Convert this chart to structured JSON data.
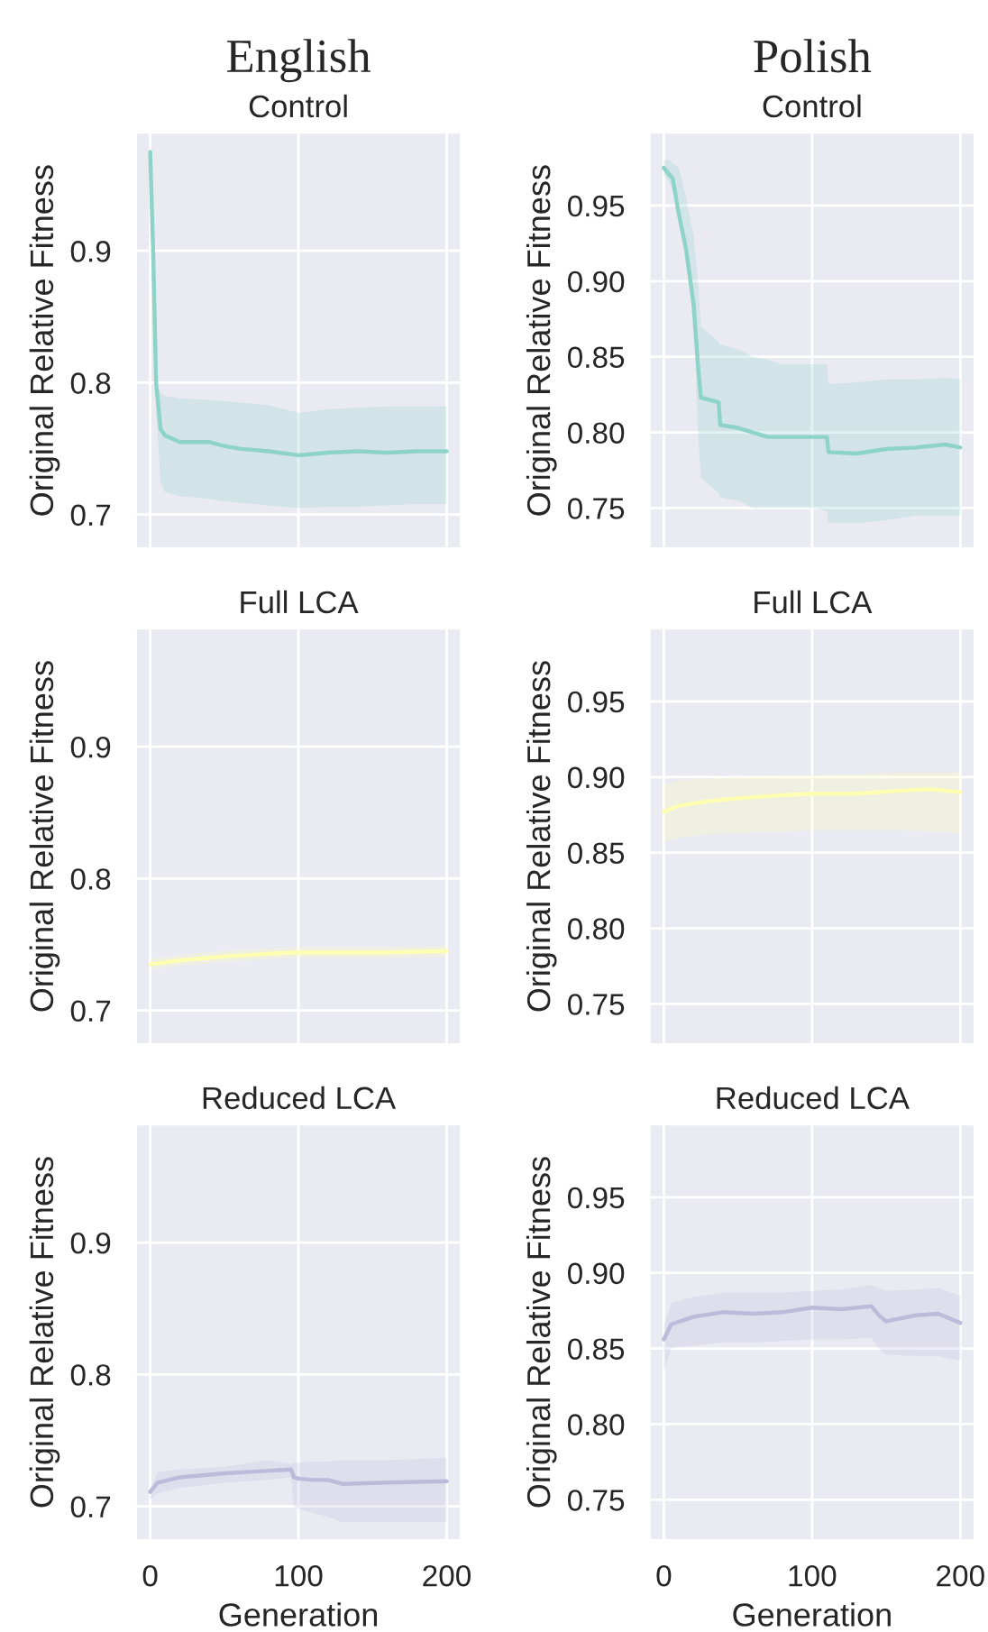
{
  "chart_data": [
    {
      "type": "line",
      "subtitle": "English",
      "title": "Control",
      "ylabel": "Original Relative Fitness",
      "xlim": [
        -10,
        210
      ],
      "xticks": [
        0,
        100,
        200
      ],
      "ylim": [
        0.674,
        0.99
      ],
      "yticks": [
        0.7,
        0.8,
        0.9
      ],
      "grid": true,
      "tick_labels": "y",
      "series": [
        {
          "color": "#8dd3c7",
          "x": [
            0,
            2,
            4,
            7,
            10,
            20,
            40,
            50,
            60,
            80,
            100,
            120,
            140,
            160,
            180,
            200
          ],
          "values": [
            0.975,
            0.9,
            0.8,
            0.765,
            0.76,
            0.755,
            0.755,
            0.752,
            0.75,
            0.748,
            0.745,
            0.747,
            0.748,
            0.747,
            0.748,
            0.748
          ],
          "upper": [
            0.975,
            0.9,
            0.8,
            0.792,
            0.79,
            0.788,
            0.787,
            0.786,
            0.785,
            0.783,
            0.777,
            0.78,
            0.781,
            0.782,
            0.782,
            0.782
          ],
          "lower": [
            0.975,
            0.9,
            0.78,
            0.725,
            0.717,
            0.714,
            0.712,
            0.71,
            0.709,
            0.707,
            0.705,
            0.706,
            0.706,
            0.707,
            0.708,
            0.708
          ]
        }
      ]
    },
    {
      "type": "line",
      "subtitle": "Polish",
      "title": "Control",
      "ylabel": "Original Relative Fitness",
      "xlim": [
        -10,
        210
      ],
      "xticks": [
        0,
        100,
        200
      ],
      "ylim": [
        0.723,
        0.9985
      ],
      "yticks": [
        {
          "value": 0.75,
          "label": "0.75"
        },
        {
          "value": 0.8,
          "label": "0.80"
        },
        {
          "value": 0.85,
          "label": "0.85"
        },
        {
          "value": 0.9,
          "label": "0.90"
        },
        {
          "value": 0.95,
          "label": "0.95"
        }
      ],
      "grid": true,
      "tick_labels": "y",
      "series": [
        {
          "color": "#8dd3c7",
          "x": [
            0,
            4,
            6,
            10,
            15,
            20,
            23,
            25,
            37,
            38,
            50,
            60,
            70,
            80,
            100,
            110,
            111,
            130,
            150,
            170,
            190,
            200
          ],
          "values": [
            0.975,
            0.97,
            0.968,
            0.945,
            0.921,
            0.885,
            0.845,
            0.823,
            0.82,
            0.805,
            0.803,
            0.8,
            0.797,
            0.797,
            0.797,
            0.797,
            0.787,
            0.786,
            0.789,
            0.79,
            0.792,
            0.79
          ],
          "upper": [
            0.98,
            0.98,
            0.978,
            0.975,
            0.955,
            0.93,
            0.9,
            0.87,
            0.86,
            0.858,
            0.855,
            0.85,
            0.848,
            0.845,
            0.845,
            0.845,
            0.832,
            0.833,
            0.835,
            0.835,
            0.836,
            0.835
          ],
          "lower": [
            0.97,
            0.965,
            0.96,
            0.955,
            0.92,
            0.88,
            0.8,
            0.77,
            0.76,
            0.757,
            0.755,
            0.75,
            0.75,
            0.75,
            0.75,
            0.748,
            0.74,
            0.74,
            0.742,
            0.745,
            0.745,
            0.745
          ]
        }
      ]
    },
    {
      "type": "line",
      "title": "Full LCA",
      "ylabel": "Original Relative Fitness",
      "xlim": [
        -10,
        210
      ],
      "xticks": [
        0,
        100,
        200
      ],
      "ylim": [
        0.674,
        0.99
      ],
      "yticks": [
        0.7,
        0.8,
        0.9
      ],
      "grid": true,
      "tick_labels": "y",
      "series": [
        {
          "color": "#ffffb3",
          "x": [
            0,
            20,
            50,
            80,
            100,
            130,
            160,
            200
          ],
          "values": [
            0.735,
            0.738,
            0.741,
            0.743,
            0.744,
            0.744,
            0.744,
            0.745
          ],
          "upper": [
            0.739,
            0.742,
            0.745,
            0.747,
            0.748,
            0.748,
            0.748,
            0.749
          ],
          "lower": [
            0.731,
            0.734,
            0.737,
            0.739,
            0.74,
            0.74,
            0.74,
            0.741
          ]
        }
      ]
    },
    {
      "type": "line",
      "title": "Full LCA",
      "ylabel": "Original Relative Fitness",
      "xlim": [
        -10,
        210
      ],
      "xticks": [
        0,
        100,
        200
      ],
      "ylim": [
        0.723,
        0.9985
      ],
      "yticks": [
        {
          "value": 0.75,
          "label": "0.75"
        },
        {
          "value": 0.8,
          "label": "0.80"
        },
        {
          "value": 0.85,
          "label": "0.85"
        },
        {
          "value": 0.9,
          "label": "0.90"
        },
        {
          "value": 0.95,
          "label": "0.95"
        }
      ],
      "grid": true,
      "tick_labels": "y",
      "series": [
        {
          "color": "#ffffb3",
          "x": [
            0,
            10,
            30,
            50,
            80,
            100,
            130,
            160,
            180,
            200
          ],
          "values": [
            0.877,
            0.881,
            0.884,
            0.886,
            0.888,
            0.889,
            0.889,
            0.891,
            0.892,
            0.89
          ],
          "upper": [
            0.895,
            0.898,
            0.899,
            0.9,
            0.901,
            0.901,
            0.902,
            0.903,
            0.903,
            0.903
          ],
          "lower": [
            0.857,
            0.86,
            0.862,
            0.863,
            0.864,
            0.865,
            0.865,
            0.865,
            0.864,
            0.863
          ]
        }
      ]
    },
    {
      "type": "line",
      "title": "Reduced LCA",
      "ylabel": "Original Relative Fitness",
      "xlabel": "Generation",
      "xlim": [
        -10,
        210
      ],
      "xticks": [
        0,
        100,
        200
      ],
      "ylim": [
        0.674,
        0.99
      ],
      "yticks": [
        0.7,
        0.8,
        0.9
      ],
      "grid": true,
      "series": [
        {
          "color": "#bebada",
          "x": [
            0,
            5,
            20,
            50,
            80,
            95,
            97,
            100,
            110,
            120,
            130,
            160,
            200
          ],
          "values": [
            0.711,
            0.718,
            0.722,
            0.725,
            0.727,
            0.728,
            0.722,
            0.721,
            0.72,
            0.72,
            0.717,
            0.718,
            0.719
          ],
          "upper": [
            0.713,
            0.726,
            0.728,
            0.73,
            0.735,
            0.732,
            0.733,
            0.733,
            0.734,
            0.734,
            0.735,
            0.735,
            0.737
          ],
          "lower": [
            0.705,
            0.71,
            0.714,
            0.718,
            0.72,
            0.722,
            0.7,
            0.698,
            0.695,
            0.692,
            0.688,
            0.688,
            0.688
          ]
        }
      ]
    },
    {
      "type": "line",
      "title": "Reduced LCA",
      "ylabel": "Original Relative Fitness",
      "xlabel": "Generation",
      "xlim": [
        -10,
        210
      ],
      "xticks": [
        0,
        100,
        200
      ],
      "ylim": [
        0.723,
        0.9985
      ],
      "yticks": [
        {
          "value": 0.75,
          "label": "0.75"
        },
        {
          "value": 0.8,
          "label": "0.80"
        },
        {
          "value": 0.85,
          "label": "0.85"
        },
        {
          "value": 0.9,
          "label": "0.90"
        },
        {
          "value": 0.95,
          "label": "0.95"
        }
      ],
      "grid": true,
      "series": [
        {
          "color": "#bebada",
          "x": [
            0,
            5,
            20,
            40,
            60,
            80,
            100,
            120,
            140,
            145,
            150,
            170,
            185,
            200
          ],
          "values": [
            0.856,
            0.866,
            0.871,
            0.874,
            0.873,
            0.874,
            0.877,
            0.876,
            0.878,
            0.872,
            0.868,
            0.872,
            0.873,
            0.867
          ],
          "upper": [
            0.865,
            0.88,
            0.884,
            0.887,
            0.887,
            0.887,
            0.888,
            0.889,
            0.892,
            0.89,
            0.888,
            0.889,
            0.89,
            0.885
          ],
          "lower": [
            0.835,
            0.85,
            0.852,
            0.854,
            0.854,
            0.855,
            0.856,
            0.856,
            0.857,
            0.85,
            0.846,
            0.845,
            0.845,
            0.842
          ]
        }
      ]
    }
  ]
}
